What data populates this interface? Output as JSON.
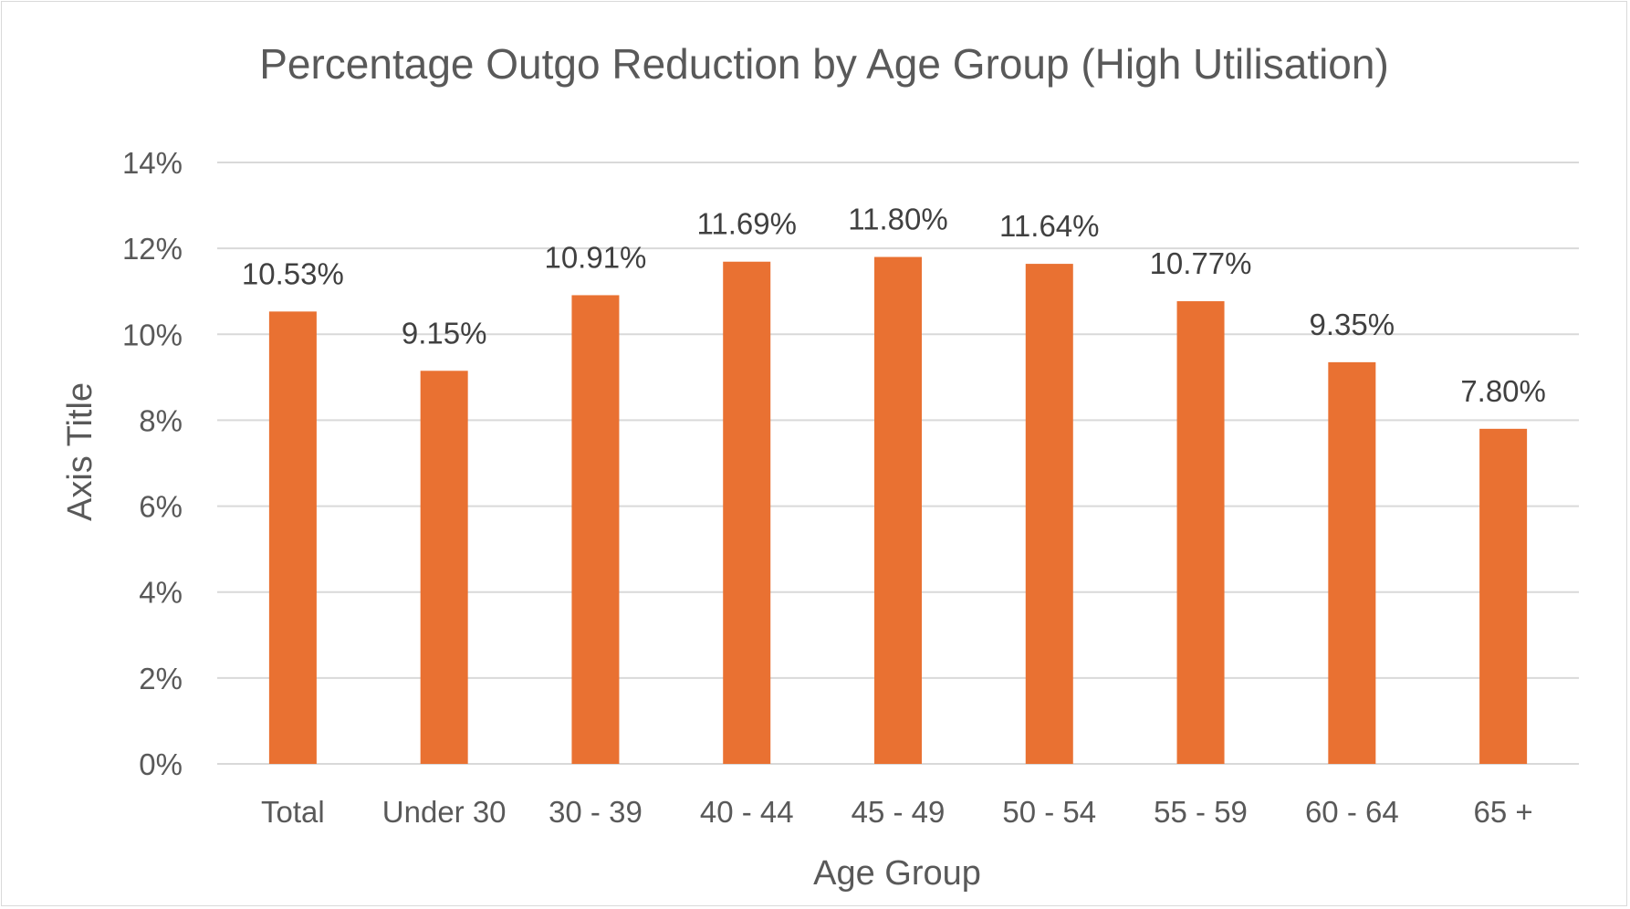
{
  "chart_data": {
    "type": "bar",
    "title": "Percentage Outgo Reduction by Age Group (High Utilisation)",
    "xlabel": "Age Group",
    "ylabel": "Axis Title",
    "categories": [
      "Total",
      "Under 30",
      "30 - 39",
      "40 - 44",
      "45 - 49",
      "50 - 54",
      "55 - 59",
      "60 - 64",
      "65 +"
    ],
    "values": [
      10.53,
      9.15,
      10.91,
      11.69,
      11.8,
      11.64,
      10.77,
      9.35,
      7.8
    ],
    "data_labels": [
      "10.53%",
      "9.15%",
      "10.91%",
      "11.69%",
      "11.80%",
      "11.64%",
      "10.77%",
      "9.35%",
      "7.80%"
    ],
    "ylim": [
      0,
      14
    ],
    "y_ticks": [
      0,
      2,
      4,
      6,
      8,
      10,
      12,
      14
    ],
    "y_tick_labels": [
      "0%",
      "2%",
      "4%",
      "6%",
      "8%",
      "10%",
      "12%",
      "14%"
    ],
    "grid": true,
    "legend": "none",
    "bar_color": "#E97132"
  }
}
